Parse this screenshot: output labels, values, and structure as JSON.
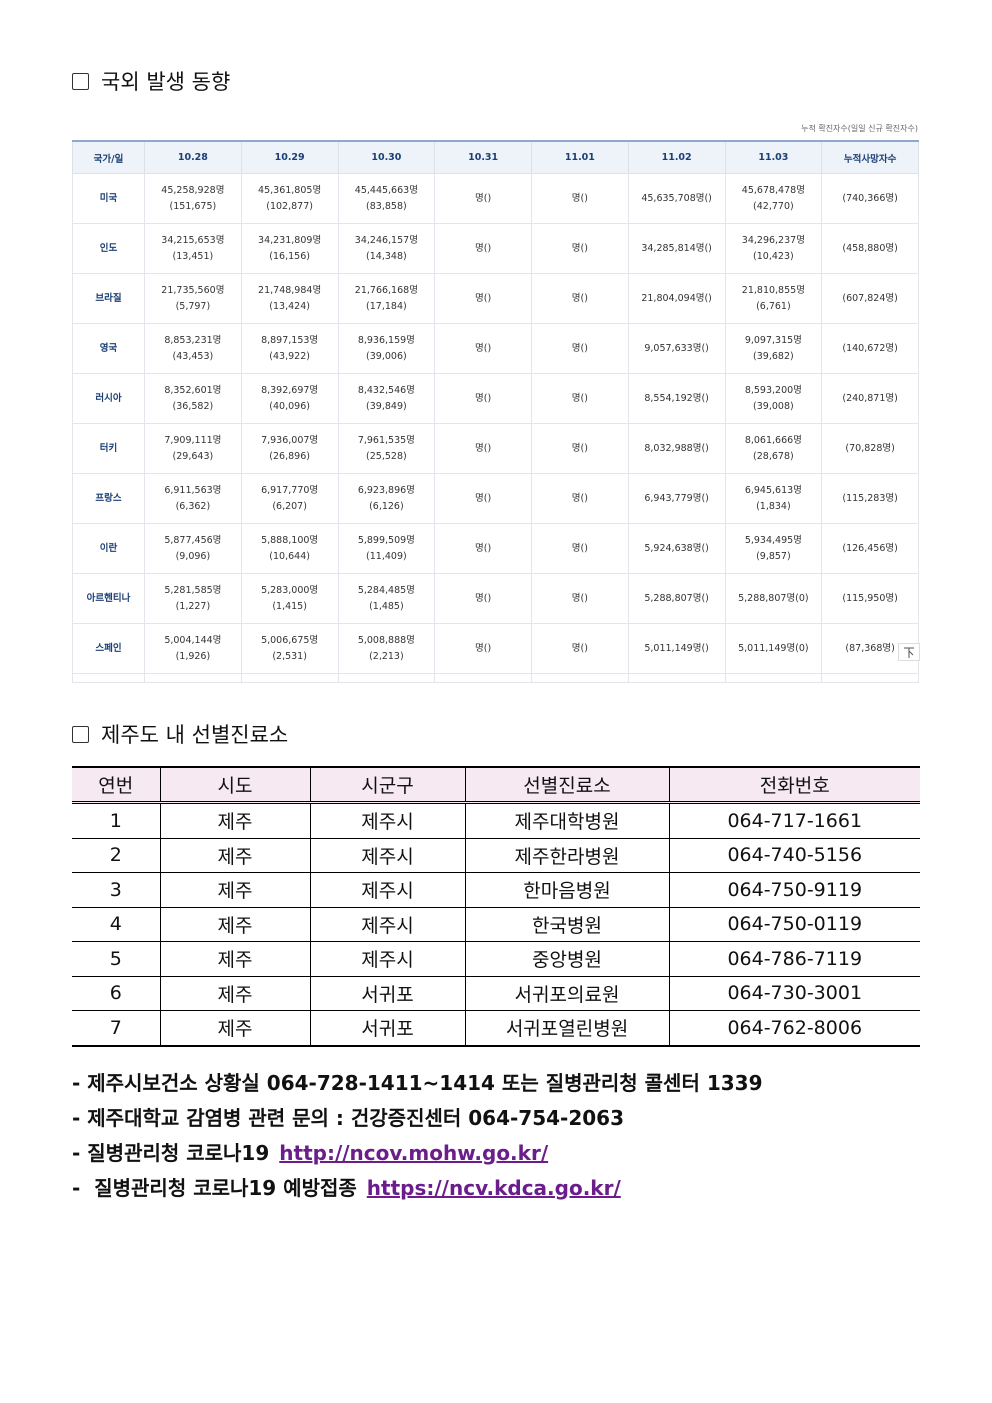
{
  "section1": {
    "title": "국외 발생 동향",
    "note": "누적 확진자수(일일 신규 확진자수)",
    "headers": [
      "국가/일",
      "10.28",
      "10.29",
      "10.30",
      "10.31",
      "11.01",
      "11.02",
      "11.03",
      "누적사망자수"
    ],
    "rows": [
      {
        "country": "미국",
        "cells": [
          [
            "45,258,928명",
            "(151,675)"
          ],
          [
            "45,361,805명",
            "(102,877)"
          ],
          [
            "45,445,663명",
            "(83,858)"
          ],
          [
            "명()"
          ],
          [
            "명()"
          ],
          [
            "45,635,708명()"
          ],
          [
            "45,678,478명",
            "(42,770)"
          ],
          [
            "(740,366명)"
          ]
        ]
      },
      {
        "country": "인도",
        "cells": [
          [
            "34,215,653명",
            "(13,451)"
          ],
          [
            "34,231,809명",
            "(16,156)"
          ],
          [
            "34,246,157명",
            "(14,348)"
          ],
          [
            "명()"
          ],
          [
            "명()"
          ],
          [
            "34,285,814명()"
          ],
          [
            "34,296,237명",
            "(10,423)"
          ],
          [
            "(458,880명)"
          ]
        ]
      },
      {
        "country": "브라질",
        "cells": [
          [
            "21,735,560명",
            "(5,797)"
          ],
          [
            "21,748,984명",
            "(13,424)"
          ],
          [
            "21,766,168명",
            "(17,184)"
          ],
          [
            "명()"
          ],
          [
            "명()"
          ],
          [
            "21,804,094명()"
          ],
          [
            "21,810,855명",
            "(6,761)"
          ],
          [
            "(607,824명)"
          ]
        ]
      },
      {
        "country": "영국",
        "cells": [
          [
            "8,853,231명",
            "(43,453)"
          ],
          [
            "8,897,153명",
            "(43,922)"
          ],
          [
            "8,936,159명",
            "(39,006)"
          ],
          [
            "명()"
          ],
          [
            "명()"
          ],
          [
            "9,057,633명()"
          ],
          [
            "9,097,315명",
            "(39,682)"
          ],
          [
            "(140,672명)"
          ]
        ]
      },
      {
        "country": "러시아",
        "cells": [
          [
            "8,352,601명",
            "(36,582)"
          ],
          [
            "8,392,697명",
            "(40,096)"
          ],
          [
            "8,432,546명",
            "(39,849)"
          ],
          [
            "명()"
          ],
          [
            "명()"
          ],
          [
            "8,554,192명()"
          ],
          [
            "8,593,200명",
            "(39,008)"
          ],
          [
            "(240,871명)"
          ]
        ]
      },
      {
        "country": "터키",
        "cells": [
          [
            "7,909,111명",
            "(29,643)"
          ],
          [
            "7,936,007명",
            "(26,896)"
          ],
          [
            "7,961,535명",
            "(25,528)"
          ],
          [
            "명()"
          ],
          [
            "명()"
          ],
          [
            "8,032,988명()"
          ],
          [
            "8,061,666명",
            "(28,678)"
          ],
          [
            "(70,828명)"
          ]
        ]
      },
      {
        "country": "프랑스",
        "cells": [
          [
            "6,911,563명",
            "(6,362)"
          ],
          [
            "6,917,770명",
            "(6,207)"
          ],
          [
            "6,923,896명",
            "(6,126)"
          ],
          [
            "명()"
          ],
          [
            "명()"
          ],
          [
            "6,943,779명()"
          ],
          [
            "6,945,613명",
            "(1,834)"
          ],
          [
            "(115,283명)"
          ]
        ]
      },
      {
        "country": "이란",
        "cells": [
          [
            "5,877,456명",
            "(9,096)"
          ],
          [
            "5,888,100명",
            "(10,644)"
          ],
          [
            "5,899,509명",
            "(11,409)"
          ],
          [
            "명()"
          ],
          [
            "명()"
          ],
          [
            "5,924,638명()"
          ],
          [
            "5,934,495명",
            "(9,857)"
          ],
          [
            "(126,456명)"
          ]
        ]
      },
      {
        "country": "아르헨티나",
        "cells": [
          [
            "5,281,585명",
            "(1,227)"
          ],
          [
            "5,283,000명",
            "(1,415)"
          ],
          [
            "5,284,485명",
            "(1,485)"
          ],
          [
            "명()"
          ],
          [
            "명()"
          ],
          [
            "5,288,807명()"
          ],
          [
            "5,288,807명(0)"
          ],
          [
            "(115,950명)"
          ]
        ]
      },
      {
        "country": "스페인",
        "cells": [
          [
            "5,004,144명",
            "(1,926)"
          ],
          [
            "5,006,675명",
            "(2,531)"
          ],
          [
            "5,008,888명",
            "(2,213)"
          ],
          [
            "명()"
          ],
          [
            "명()"
          ],
          [
            "5,011,149명()"
          ],
          [
            "5,011,149명(0)"
          ],
          [
            "(87,368명)"
          ]
        ]
      }
    ]
  },
  "section2": {
    "title": "제주도 내 선별진료소",
    "headers": [
      "연번",
      "시도",
      "시군구",
      "선별진료소",
      "전화번호"
    ],
    "rows": [
      [
        "1",
        "제주",
        "제주시",
        "제주대학병원",
        "064-717-1661"
      ],
      [
        "2",
        "제주",
        "제주시",
        "제주한라병원",
        "064-740-5156"
      ],
      [
        "3",
        "제주",
        "제주시",
        "한마음병원",
        "064-750-9119"
      ],
      [
        "4",
        "제주",
        "제주시",
        "한국병원",
        "064-750-0119"
      ],
      [
        "5",
        "제주",
        "제주시",
        "중앙병원",
        "064-786-7119"
      ],
      [
        "6",
        "제주",
        "서귀포",
        "서귀포의료원",
        "064-730-3001"
      ],
      [
        "7",
        "제주",
        "서귀포",
        "서귀포열린병원",
        "064-762-8006"
      ]
    ]
  },
  "notes": [
    {
      "text": "- 제주시보건소 상황실 064-728-1411~1414 또는 질병관리청 콜센터 1339"
    },
    {
      "text": "- 제주대학교 감염병 관련 문의 : 건강증진센터 064-754-2063"
    },
    {
      "text": "- 질병관리청 코로나19",
      "link": "http://ncov.mohw.go.kr/"
    },
    {
      "text": "-  질병관리청 코로나19 예방접종",
      "link": "https://ncv.kdca.go.kr/"
    }
  ]
}
